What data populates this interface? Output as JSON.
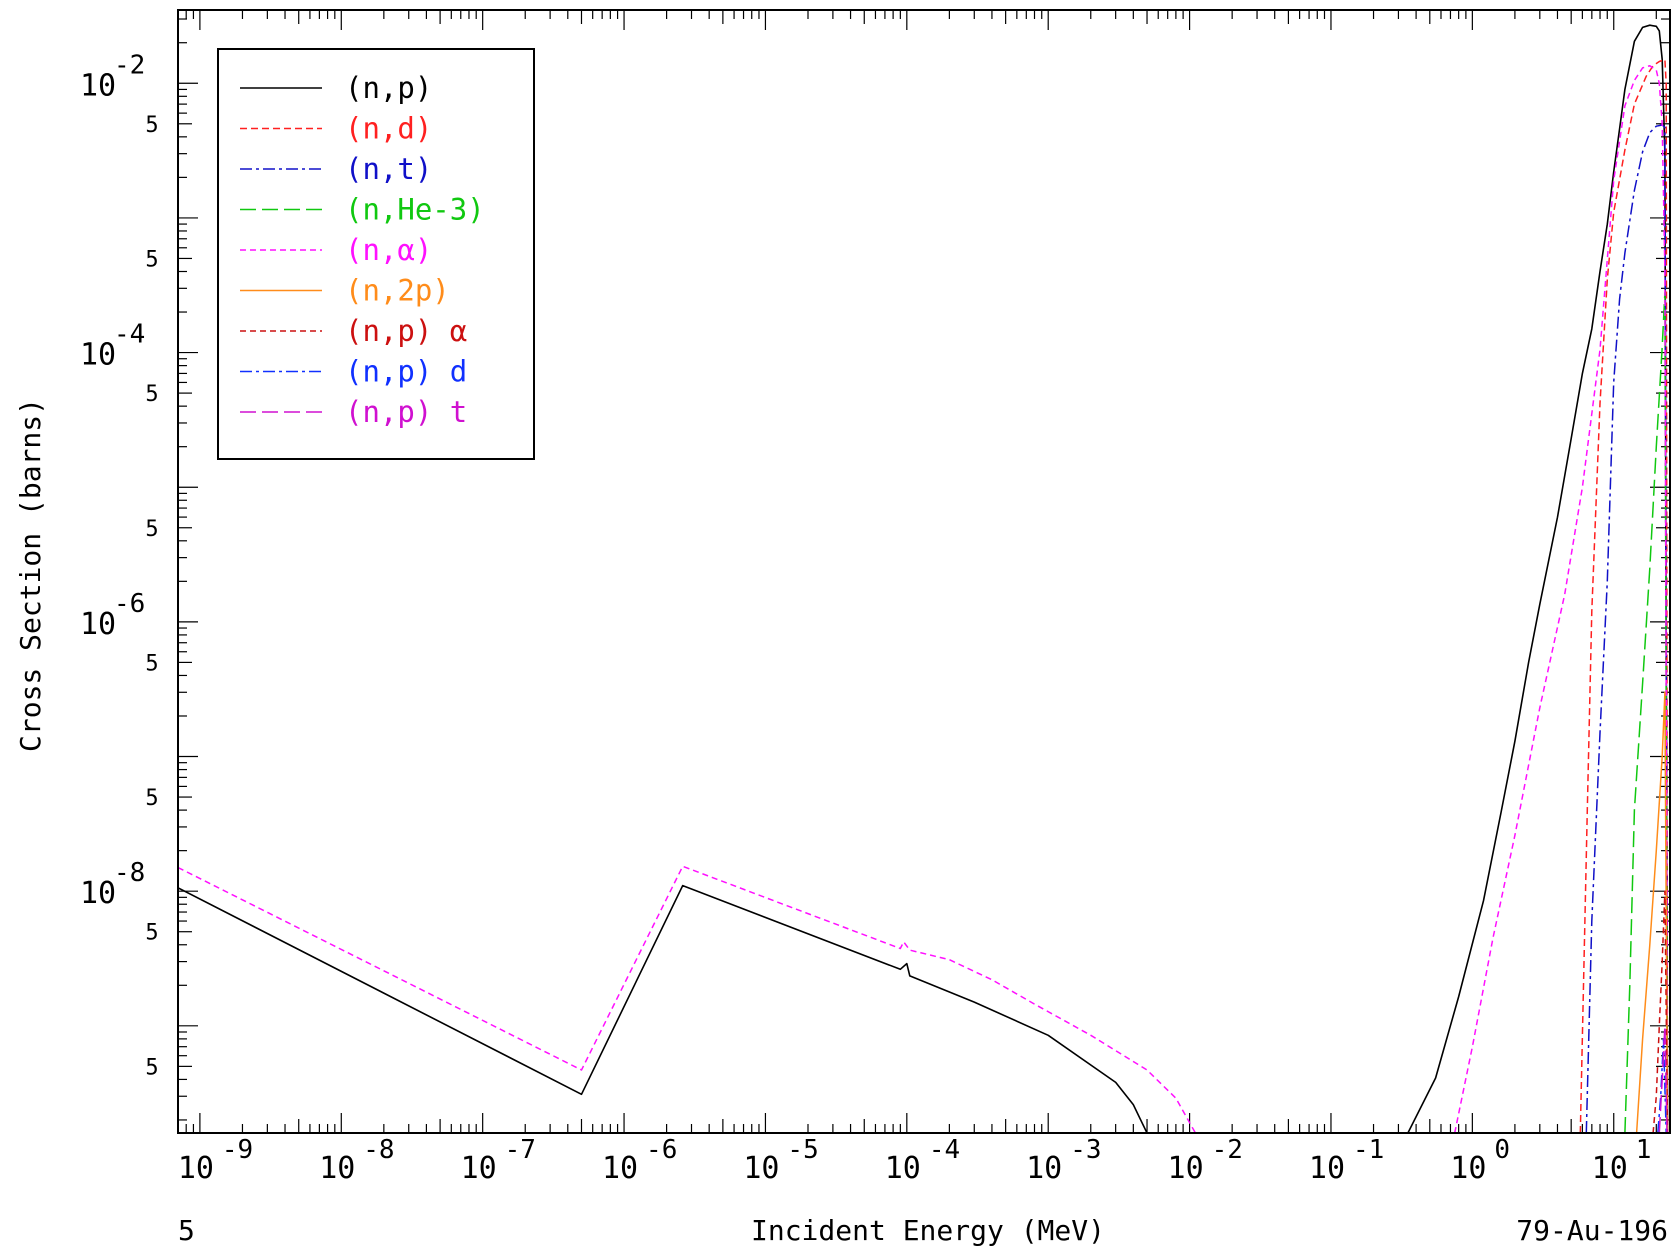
{
  "chart_data": {
    "type": "line",
    "title": "",
    "xlabel": "Incident Energy (MeV)",
    "ylabel": "Cross Section (barns)",
    "x_scale": "log",
    "y_scale": "log",
    "xlim": [
      7e-10,
      25
    ],
    "ylim": [
      1.6e-10,
      0.035
    ],
    "x_ticks": [
      {
        "value": 1e-09,
        "label": "10",
        "exp": "-9"
      },
      {
        "value": 1e-08,
        "label": "10",
        "exp": "-8"
      },
      {
        "value": 1e-07,
        "label": "10",
        "exp": "-7"
      },
      {
        "value": 1e-06,
        "label": "10",
        "exp": "-6"
      },
      {
        "value": 1e-05,
        "label": "10",
        "exp": "-5"
      },
      {
        "value": 0.0001,
        "label": "10",
        "exp": "-4"
      },
      {
        "value": 0.001,
        "label": "10",
        "exp": "-3"
      },
      {
        "value": 0.01,
        "label": "10",
        "exp": "-2"
      },
      {
        "value": 0.1,
        "label": "10",
        "exp": "-1"
      },
      {
        "value": 1,
        "label": "10",
        "exp": "0"
      },
      {
        "value": 10,
        "label": "10",
        "exp": "1"
      }
    ],
    "y_ticks": [
      {
        "value": 0.01,
        "label": "10",
        "exp": "-2"
      },
      {
        "value": 0.0001,
        "label": "10",
        "exp": "-4"
      },
      {
        "value": 1e-06,
        "label": "10",
        "exp": "-6"
      },
      {
        "value": 1e-08,
        "label": "10",
        "exp": "-8"
      }
    ],
    "y_minor_labels": [
      {
        "value": 0.005,
        "label": "5"
      },
      {
        "value": 0.0005,
        "label": "5"
      },
      {
        "value": 5e-05,
        "label": "5"
      },
      {
        "value": 5e-06,
        "label": "5"
      },
      {
        "value": 5e-07,
        "label": "5"
      },
      {
        "value": 5e-08,
        "label": "5"
      },
      {
        "value": 5e-09,
        "label": "5"
      },
      {
        "value": 5e-10,
        "label": "5"
      }
    ],
    "bottom_left_text": "5",
    "bottom_right_text": "79-Au-196",
    "legend_position": "top-left",
    "series": [
      {
        "name": "(n,p)",
        "color": "#000000",
        "dash": "",
        "width": 1.6,
        "points": [
          [
            7e-10,
            1.06e-08
          ],
          [
            5e-07,
            3.1e-10
          ],
          [
            2.6e-06,
            1.1e-08
          ],
          [
            9e-05,
            2.63e-09
          ],
          [
            0.0001,
            2.9e-09
          ],
          [
            0.000105,
            2.35e-09
          ],
          [
            0.0003,
            1.5e-09
          ],
          [
            0.001,
            8.5e-10
          ],
          [
            0.003,
            3.8e-10
          ],
          [
            0.004,
            2.6e-10
          ],
          [
            0.005,
            1.6e-10
          ]
        ]
      },
      {
        "name": "(n,p)",
        "color": "#000000",
        "dash": "",
        "width": 1.6,
        "points": [
          [
            0.35,
            1.6e-10
          ],
          [
            0.55,
            4.1e-10
          ],
          [
            0.8,
            1.65e-09
          ],
          [
            1.2,
            8.5e-09
          ],
          [
            1.6,
            3.9e-08
          ],
          [
            2,
            1.3e-07
          ],
          [
            2.5,
            5e-07
          ],
          [
            3,
            1.35e-06
          ],
          [
            4,
            6e-06
          ],
          [
            5,
            2.3e-05
          ],
          [
            6,
            7e-05
          ],
          [
            7,
            0.00015
          ],
          [
            8,
            0.0004
          ],
          [
            9,
            0.0009
          ],
          [
            10,
            0.0022
          ],
          [
            11,
            0.0046
          ],
          [
            12,
            0.009
          ],
          [
            14,
            0.0205
          ],
          [
            16,
            0.026
          ],
          [
            18,
            0.027
          ],
          [
            20,
            0.0265
          ],
          [
            21,
            0.0245
          ],
          [
            22,
            0.015
          ],
          [
            23,
            0.003
          ],
          [
            24,
            1.6e-10
          ]
        ]
      },
      {
        "name": "(n,d)",
        "color": "#ff2020",
        "dash": "7,4",
        "width": 1.5,
        "points": [
          [
            5.8,
            1.6e-10
          ],
          [
            6.5,
            4e-08
          ],
          [
            7,
            1.2e-06
          ],
          [
            8,
            4.2e-05
          ],
          [
            9,
            0.00035
          ],
          [
            10,
            0.0011
          ],
          [
            12,
            0.0032
          ],
          [
            14,
            0.007
          ],
          [
            17,
            0.0113
          ],
          [
            19,
            0.0135
          ],
          [
            21,
            0.0145
          ],
          [
            23,
            0.015
          ],
          [
            23.5,
            0.01
          ],
          [
            24,
            1.6e-10
          ]
        ]
      },
      {
        "name": "(n,t)",
        "color": "#1010c8",
        "dash": "12,4,3,4",
        "width": 1.5,
        "points": [
          [
            6.4,
            1.6e-10
          ],
          [
            7,
            6e-09
          ],
          [
            8,
            1.5e-07
          ],
          [
            9,
            2e-06
          ],
          [
            10,
            6e-05
          ],
          [
            11,
            0.00025
          ],
          [
            12,
            0.00055
          ],
          [
            14,
            0.0016
          ],
          [
            16,
            0.0031
          ],
          [
            18,
            0.0043
          ],
          [
            20,
            0.0048
          ],
          [
            22,
            0.0049
          ],
          [
            23,
            0.0047
          ],
          [
            24,
            1.6e-10
          ]
        ]
      },
      {
        "name": "(n,He-3)",
        "color": "#10c810",
        "dash": "16,6",
        "width": 1.5,
        "points": [
          [
            12,
            1.6e-10
          ],
          [
            13,
            2e-09
          ],
          [
            14,
            4e-08
          ],
          [
            16,
            3.5e-07
          ],
          [
            18,
            2.5e-06
          ],
          [
            20,
            2e-05
          ],
          [
            22,
            0.00011
          ],
          [
            23,
            0.00028
          ],
          [
            24,
            1.6e-10
          ]
        ]
      },
      {
        "name": "(n,α)",
        "color": "#ff10ff",
        "dash": "6,4",
        "width": 1.5,
        "points": [
          [
            7e-10,
            1.5e-08
          ],
          [
            5e-07,
            4.7e-10
          ],
          [
            2.6e-06,
            1.53e-08
          ],
          [
            9e-05,
            3.75e-09
          ],
          [
            9.5e-05,
            4.2e-09
          ],
          [
            0.000105,
            3.65e-09
          ],
          [
            0.0002,
            3.1e-09
          ],
          [
            0.0004,
            2.2e-09
          ],
          [
            0.0008,
            1.45e-09
          ],
          [
            0.002,
            8.5e-10
          ],
          [
            0.005,
            4.7e-10
          ],
          [
            0.008,
            2.9e-10
          ],
          [
            0.011,
            1.6e-10
          ]
        ]
      },
      {
        "name": "(n,α)",
        "color": "#ff10ff",
        "dash": "6,4",
        "width": 1.5,
        "points": [
          [
            0.75,
            1.6e-10
          ],
          [
            1,
            7e-10
          ],
          [
            1.4,
            4.5e-09
          ],
          [
            2,
            2.6e-08
          ],
          [
            3,
            2.3e-07
          ],
          [
            4.5,
            1.6e-06
          ],
          [
            6,
            1e-05
          ],
          [
            8,
            0.000105
          ],
          [
            10,
            0.0019
          ],
          [
            12,
            0.0068
          ],
          [
            14,
            0.0105
          ],
          [
            16,
            0.013
          ],
          [
            18,
            0.0135
          ],
          [
            20,
            0.0125
          ],
          [
            21,
            0.01
          ],
          [
            22,
            0.005
          ],
          [
            23,
            0.0004
          ],
          [
            24,
            1.6e-10
          ]
        ]
      },
      {
        "name": "(n,2p)",
        "color": "#ff8c1a",
        "dash": "",
        "width": 1.5,
        "points": [
          [
            14.5,
            1.6e-10
          ],
          [
            16,
            8e-10
          ],
          [
            18,
            4e-09
          ],
          [
            20,
            2e-08
          ],
          [
            22,
            1e-07
          ],
          [
            23,
            3e-07
          ],
          [
            24,
            1.6e-10
          ]
        ]
      },
      {
        "name": "(n,p) α",
        "color": "#cc1010",
        "dash": "6,4",
        "width": 1.5,
        "points": [
          [
            19,
            1.6e-10
          ],
          [
            20,
            3e-10
          ],
          [
            21,
            1e-09
          ],
          [
            22,
            3e-09
          ],
          [
            23,
            1e-08
          ],
          [
            24,
            1.6e-10
          ]
        ]
      },
      {
        "name": "(n,p) d",
        "color": "#1030ff",
        "dash": "12,4,3,4",
        "width": 1.5,
        "points": [
          [
            20.5,
            1.6e-10
          ],
          [
            21.5,
            3e-10
          ],
          [
            22.5,
            8e-10
          ],
          [
            23.5,
            1.6e-10
          ]
        ]
      },
      {
        "name": "(n,p) t",
        "color": "#d010d0",
        "dash": "16,6",
        "width": 1.5,
        "points": [
          [
            21,
            1.6e-10
          ],
          [
            22,
            4e-10
          ],
          [
            23,
            1e-09
          ],
          [
            23.8,
            1.6e-10
          ]
        ]
      }
    ],
    "legend": [
      {
        "label": "(n,p)",
        "color": "#000000",
        "dash": ""
      },
      {
        "label": "(n,d)",
        "color": "#ff2020",
        "dash": "7,4"
      },
      {
        "label": "(n,t)",
        "color": "#1010c8",
        "dash": "12,4,3,4"
      },
      {
        "label": "(n,He-3)",
        "color": "#10c810",
        "dash": "16,6"
      },
      {
        "label": "(n,α)",
        "color": "#ff10ff",
        "dash": "6,4"
      },
      {
        "label": "(n,2p)",
        "color": "#ff8c1a",
        "dash": ""
      },
      {
        "label": "(n,p) α",
        "color": "#cc1010",
        "dash": "6,4"
      },
      {
        "label": "(n,p) d",
        "color": "#1030ff",
        "dash": "12,4,3,4"
      },
      {
        "label": "(n,p) t",
        "color": "#d010d0",
        "dash": "16,6"
      }
    ]
  }
}
